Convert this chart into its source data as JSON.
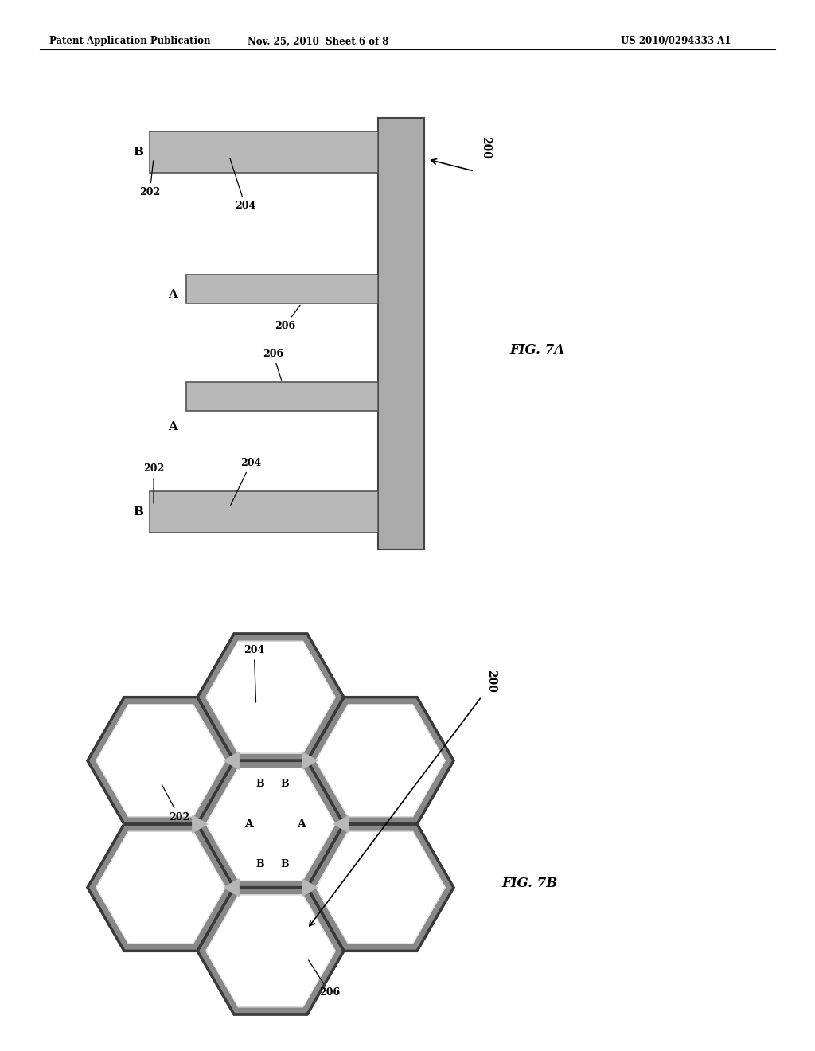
{
  "header_left": "Patent Application Publication",
  "header_mid": "Nov. 25, 2010  Sheet 6 of 8",
  "header_right": "US 2010/0294333 A1",
  "fig7a_label": "FIG. 7A",
  "fig7b_label": "FIG. 7B",
  "bg_color": "#ffffff",
  "bar_fill": "#b8b8b8",
  "bar_edge": "#555555",
  "spine_fill": "#aaaaaa",
  "spine_edge": "#444444",
  "hex_border_color": "#888888",
  "hex_inner_color": "#ffffff",
  "hex_junction_color": "#c0c0c0",
  "text_color": "#000000"
}
